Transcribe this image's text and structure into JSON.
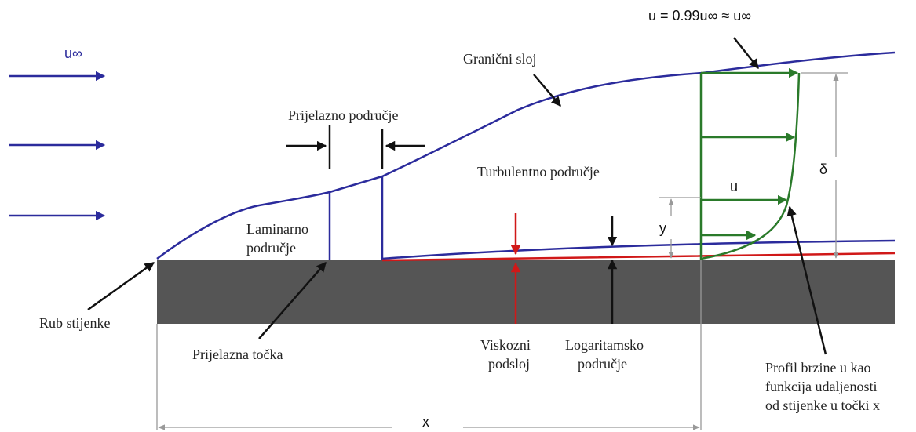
{
  "labels": {
    "u_inf": "u∞",
    "edge_velocity": "u = 0.99u∞ ≈ u∞",
    "boundary_layer": "Granični sloj",
    "transition_region": "Prijelazno područje",
    "turbulent_region": "Turbulentno područje",
    "laminar_region": [
      "Laminarno",
      "područje"
    ],
    "u": "u",
    "y": "y",
    "delta": "δ",
    "leading_edge": "Rub stijenke",
    "transition_point": "Prijelazna točka",
    "viscous_sublayer": [
      "Viskozni",
      "podsloj"
    ],
    "log_region": [
      "Logaritamsko",
      "područje"
    ],
    "profile": [
      "Profil brzine u kao",
      "funkcija udaljenosti",
      "od stijenke u točki x"
    ],
    "x": "x"
  }
}
